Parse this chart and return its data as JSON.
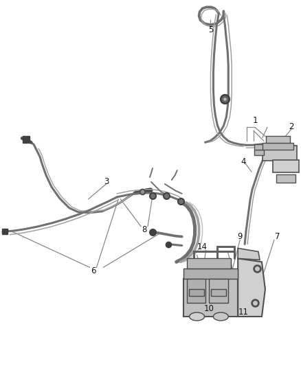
{
  "bg_color": "#ffffff",
  "line_color": "#606060",
  "label_color": "#111111",
  "callout_color": "#888888",
  "fig_width": 4.38,
  "fig_height": 5.33,
  "dpi": 100
}
